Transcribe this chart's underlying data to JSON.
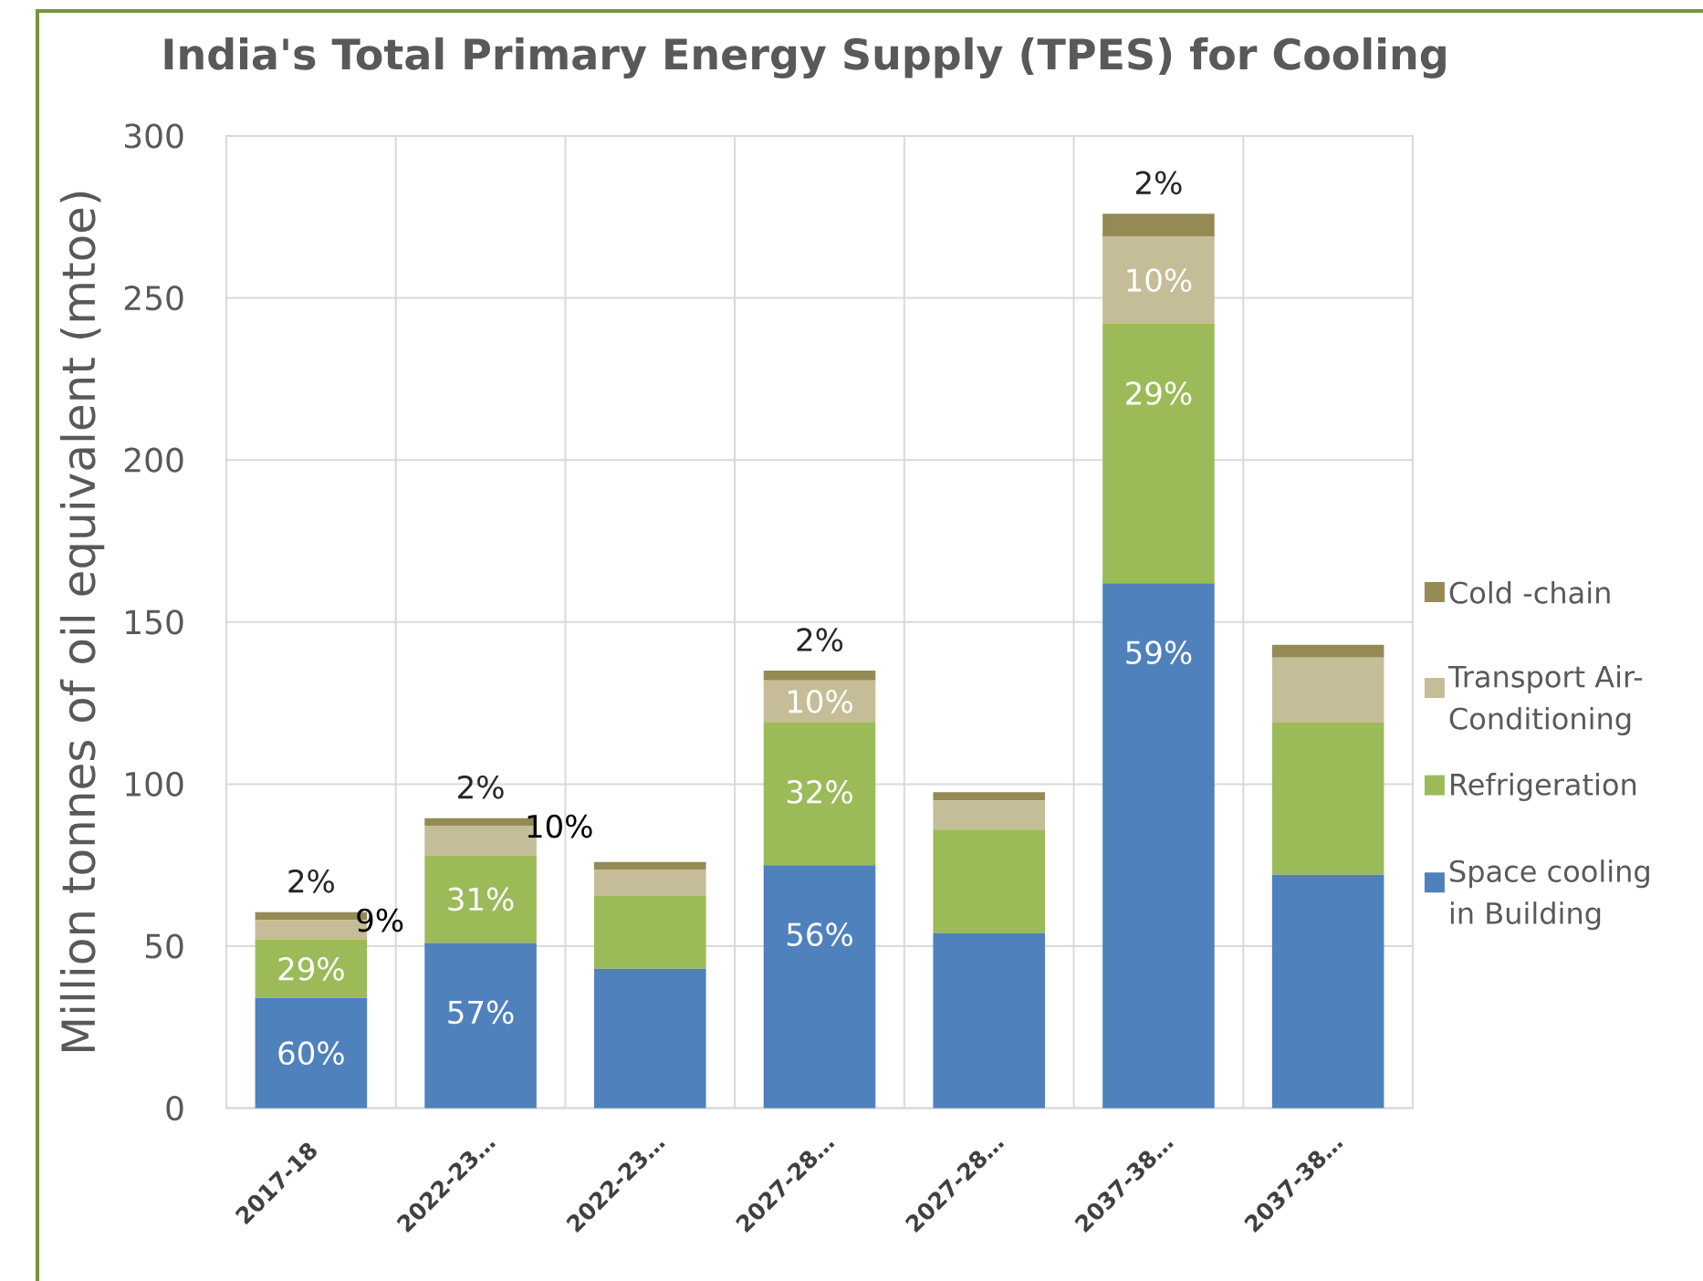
{
  "chart_data": {
    "type": "bar",
    "title": "India's Total Primary Energy Supply (TPES) for Cooling",
    "ylabel": "Million tonnes of oil equivalent (mtoe)",
    "categories": [
      "2017-18",
      "2022-23…",
      "2022-23…",
      "2027-28…",
      "2027-28…",
      "2037-38…",
      "2037-38…"
    ],
    "stacked": true,
    "ylim": [
      0,
      300
    ],
    "yticks": [
      0,
      50,
      100,
      150,
      200,
      250,
      300
    ],
    "grid": true,
    "legend": "right",
    "series": [
      {
        "name": "Space cooling in Building",
        "color": "#4f81bd",
        "values": [
          34,
          51,
          43,
          75,
          54,
          162,
          72
        ]
      },
      {
        "name": "Refrigeration",
        "color": "#9bbb59",
        "values": [
          18,
          27,
          22.5,
          44,
          32,
          80,
          47
        ]
      },
      {
        "name": "Transport Air-Conditioning",
        "color": "#c4bd97",
        "values": [
          6,
          9,
          8,
          13,
          9,
          27,
          20
        ]
      },
      {
        "name": "Cold -chain",
        "color": "#948a54",
        "values": [
          2.5,
          2.5,
          2.5,
          3,
          2.5,
          7,
          4
        ]
      }
    ],
    "annotations": [
      {
        "text": "60%",
        "x": "2017-18",
        "y": 34
      },
      {
        "text": "29%",
        "x": "2017-18",
        "y": 52
      },
      {
        "text": "9%",
        "x": "2017-18",
        "y": 58
      },
      {
        "text": "2%",
        "x": "2017-18",
        "y": 60.5
      },
      {
        "text": "57%",
        "x": "2022-23…",
        "y": 51
      },
      {
        "text": "31%",
        "x": "2022-23…",
        "y": 78
      },
      {
        "text": "10%",
        "x": "2022-23…",
        "y": 87
      },
      {
        "text": "2%",
        "x": "2022-23…",
        "y": 89.5
      },
      {
        "text": "56%",
        "x": "2027-28…",
        "y": 75
      },
      {
        "text": "32%",
        "x": "2027-28…",
        "y": 119
      },
      {
        "text": "10%",
        "x": "2027-28…",
        "y": 132
      },
      {
        "text": "2%",
        "x": "2027-28…",
        "y": 135
      },
      {
        "text": "59%",
        "x": "2037-38…",
        "y": 162
      },
      {
        "text": "29%",
        "x": "2037-38…",
        "y": 242
      },
      {
        "text": "10%",
        "x": "2037-38…",
        "y": 269
      },
      {
        "text": "2%",
        "x": "2037-38…",
        "y": 276
      }
    ]
  }
}
